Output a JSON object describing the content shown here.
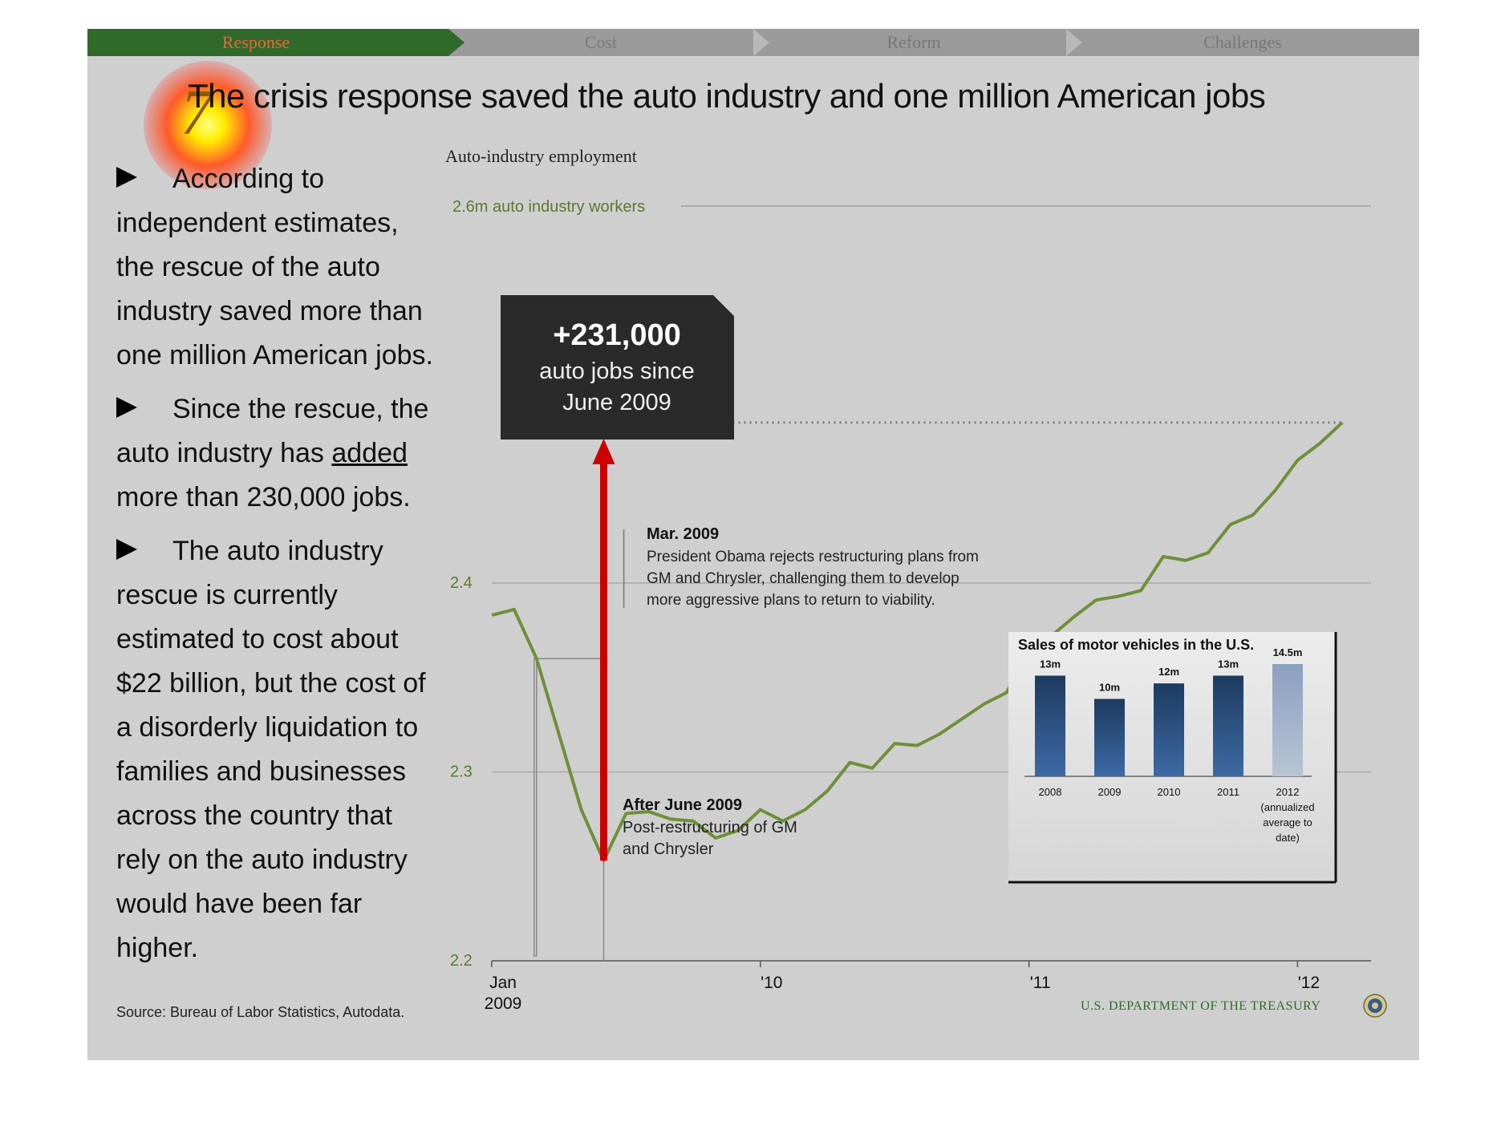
{
  "nav": {
    "items": [
      "Response",
      "Cost",
      "Reform",
      "Challenges"
    ],
    "active_index": 0,
    "active_color": "#2f6a2a",
    "active_text_color": "#e8683a"
  },
  "slide_number": "7",
  "title": "The crisis response saved the auto industry and one million American jobs",
  "bullets": [
    {
      "html_parts": [
        "According to independent estimates, the rescue of the auto industry saved more than one million American jobs."
      ]
    },
    {
      "html_parts": [
        "Since the rescue, the auto industry has ",
        "added",
        " more than 230,000 jobs."
      ]
    },
    {
      "html_parts": [
        "The auto industry rescue is currently estimated to cost about $22 billion, but the cost of a disorderly liquidation to families and businesses across the country that rely on the auto industry would have been far higher."
      ]
    }
  ],
  "source": "Source: Bureau of Labor Statistics, Autodata.",
  "footer": "U.S. DEPARTMENT OF THE TREASURY",
  "colors": {
    "line": "#6f8f3a",
    "arrow": "#cc0000",
    "callout_bg": "#2a2a2a",
    "bar_dark": "#1e3a60",
    "bar_light": "#b8c4d4"
  },
  "chart_data": [
    {
      "type": "line",
      "title": "Auto-industry employment",
      "ylim": [
        2.2,
        2.6
      ],
      "yticks": [
        "2.2",
        "2.3",
        "2.4"
      ],
      "top_label": "2.6m auto industry workers",
      "x_tick_labels": [
        "Jan\n2009",
        "'10",
        "'11",
        "'12"
      ],
      "x_months_since_jan2009": [
        0,
        12,
        24,
        36
      ],
      "series": [
        {
          "x_months_since_jan2009": [
            0,
            1,
            2,
            3,
            4,
            5,
            6,
            7,
            8,
            9,
            10,
            11,
            12,
            13,
            14,
            15,
            16,
            17,
            18,
            19,
            20,
            21,
            22,
            23,
            24,
            25,
            26,
            27,
            28,
            29,
            30,
            31,
            32,
            33,
            34,
            35,
            36,
            37,
            38
          ],
          "values": [
            2.383,
            2.386,
            2.36,
            2.32,
            2.28,
            2.253,
            2.278,
            2.279,
            2.275,
            2.274,
            2.265,
            2.269,
            2.28,
            2.274,
            2.28,
            2.29,
            2.305,
            2.302,
            2.315,
            2.314,
            2.32,
            2.328,
            2.336,
            2.342,
            2.365,
            2.372,
            2.382,
            2.391,
            2.393,
            2.396,
            2.414,
            2.412,
            2.416,
            2.431,
            2.436,
            2.449,
            2.465,
            2.474,
            2.485
          ]
        }
      ],
      "callout": {
        "value": "+231,000",
        "text": "auto jobs since June 2009"
      },
      "annotations": [
        {
          "title": "Mar. 2009",
          "text": "President Obama rejects restructuring plans from GM and Chrysler, challenging them to develop more aggressive plans to return to viability."
        },
        {
          "title": "After June 2009",
          "text": "Post-restructuring of GM and Chrysler"
        }
      ]
    },
    {
      "type": "bar",
      "title": "Sales of motor vehicles in the U.S.",
      "categories": [
        "2008",
        "2009",
        "2010",
        "2011",
        "2012 (annualized average to date)"
      ],
      "values": [
        13,
        10,
        12,
        13,
        14.5
      ],
      "data_labels": [
        "13m",
        "10m",
        "12m",
        "13m",
        "14.5m"
      ]
    }
  ]
}
